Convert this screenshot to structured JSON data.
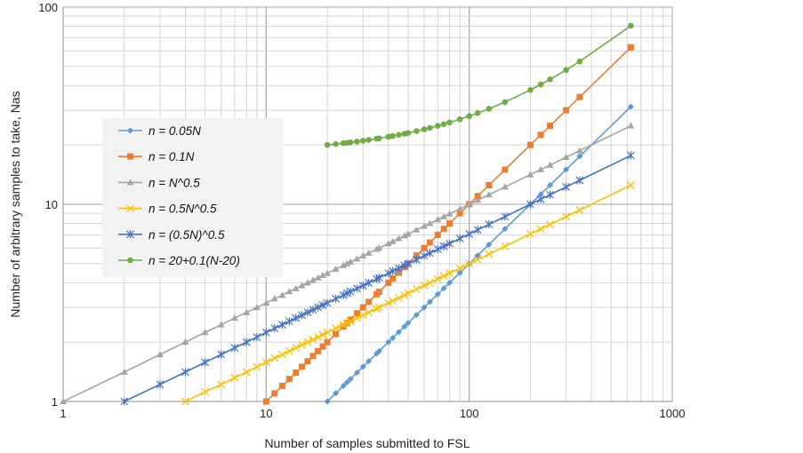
{
  "chart_data": {
    "type": "line",
    "title": "",
    "xlabel": "Number of samples submitted to FSL",
    "ylabel": "Number of arbitrary samples to take, Nas",
    "xscale": "log",
    "yscale": "log",
    "xlim": [
      1,
      1000
    ],
    "ylim": [
      1,
      100
    ],
    "xticks": [
      1,
      10,
      100,
      1000
    ],
    "xtick_labels": [
      "1",
      "10",
      "100",
      "1000"
    ],
    "yticks": [
      1,
      10,
      100
    ],
    "ytick_labels": [
      "1",
      "10",
      "100"
    ],
    "grid": true,
    "legend_position": "left-center",
    "x": [
      1,
      2,
      3,
      4,
      5,
      6,
      7,
      8,
      9,
      10,
      11,
      12,
      13,
      14,
      15,
      16,
      17,
      18,
      19,
      20,
      22,
      24,
      25,
      26,
      28,
      30,
      32,
      35,
      36,
      40,
      42,
      45,
      48,
      50,
      55,
      60,
      64,
      70,
      75,
      80,
      90,
      100,
      110,
      125,
      150,
      200,
      225,
      250,
      300,
      350,
      625
    ],
    "series": [
      {
        "name": "n = 0.05N",
        "color": "#5b9bd5",
        "marker": "diamond",
        "values": [
          null,
          null,
          null,
          null,
          null,
          null,
          null,
          null,
          null,
          null,
          null,
          null,
          null,
          null,
          null,
          null,
          null,
          null,
          null,
          1,
          1.1,
          1.2,
          1.25,
          1.3,
          1.4,
          1.5,
          1.6,
          1.75,
          1.8,
          2,
          2.1,
          2.25,
          2.4,
          2.5,
          2.75,
          3,
          3.2,
          3.5,
          3.75,
          4,
          4.5,
          5,
          5.5,
          6.25,
          7.5,
          10,
          11.25,
          12.5,
          15,
          17.5,
          31.25
        ]
      },
      {
        "name": "n = 0.1N",
        "color": "#ed7d31",
        "marker": "square",
        "values": [
          null,
          null,
          null,
          null,
          null,
          null,
          null,
          null,
          null,
          1,
          1.1,
          1.2,
          1.3,
          1.4,
          1.5,
          1.6,
          1.7,
          1.8,
          1.9,
          2,
          2.2,
          2.4,
          2.5,
          2.6,
          2.8,
          3,
          3.2,
          3.5,
          3.6,
          4,
          4.2,
          4.5,
          4.8,
          5,
          5.5,
          6,
          6.4,
          7,
          7.5,
          8,
          9,
          10,
          11,
          12.5,
          15,
          20,
          22.5,
          25,
          30,
          35,
          62.5
        ]
      },
      {
        "name": "n = N^0.5",
        "color": "#a5a5a5",
        "marker": "triangle",
        "values": [
          1,
          1.41,
          1.73,
          2,
          2.24,
          2.45,
          2.65,
          2.83,
          3,
          3.16,
          3.32,
          3.46,
          3.61,
          3.74,
          3.87,
          4,
          4.12,
          4.24,
          4.36,
          4.47,
          4.69,
          4.9,
          5,
          5.1,
          5.29,
          5.48,
          5.66,
          5.92,
          6,
          6.32,
          6.48,
          6.71,
          6.93,
          7.07,
          7.42,
          7.75,
          8,
          8.37,
          8.66,
          8.94,
          9.49,
          10,
          10.49,
          11.18,
          12.25,
          14.14,
          15,
          15.81,
          17.32,
          18.71,
          25
        ]
      },
      {
        "name": "n = 0.5N^0.5",
        "color": "#ffc000",
        "marker": "x",
        "values": [
          null,
          null,
          null,
          1,
          1.12,
          1.22,
          1.32,
          1.41,
          1.5,
          1.58,
          1.66,
          1.73,
          1.8,
          1.87,
          1.94,
          2,
          2.06,
          2.12,
          2.18,
          2.24,
          2.35,
          2.45,
          2.5,
          2.55,
          2.65,
          2.74,
          2.83,
          2.96,
          3,
          3.16,
          3.24,
          3.35,
          3.46,
          3.54,
          3.71,
          3.87,
          4,
          4.18,
          4.33,
          4.47,
          4.74,
          5,
          5.24,
          5.59,
          6.12,
          7.07,
          7.5,
          7.91,
          8.66,
          9.35,
          12.5
        ]
      },
      {
        "name": "n = (0.5N)^0.5",
        "color": "#4472c4",
        "marker": "asterisk",
        "values": [
          null,
          1,
          1.22,
          1.41,
          1.58,
          1.73,
          1.87,
          2,
          2.12,
          2.24,
          2.35,
          2.45,
          2.55,
          2.65,
          2.74,
          2.83,
          2.92,
          3,
          3.08,
          3.16,
          3.32,
          3.46,
          3.54,
          3.61,
          3.74,
          3.87,
          4,
          4.18,
          4.24,
          4.47,
          4.58,
          4.74,
          4.9,
          5,
          5.24,
          5.48,
          5.66,
          5.92,
          6.12,
          6.32,
          6.71,
          7.07,
          7.42,
          7.91,
          8.66,
          10,
          10.61,
          11.18,
          12.25,
          13.23,
          17.68
        ]
      },
      {
        "name": "n = 20+0.1(N-20)",
        "color": "#70ad47",
        "marker": "circle",
        "values": [
          null,
          null,
          null,
          null,
          null,
          null,
          null,
          null,
          null,
          null,
          null,
          null,
          null,
          null,
          null,
          null,
          null,
          null,
          null,
          20,
          20.2,
          20.4,
          20.5,
          20.6,
          20.8,
          21,
          21.2,
          21.5,
          21.6,
          22,
          22.2,
          22.5,
          22.8,
          23,
          23.5,
          24,
          24.4,
          25,
          25.5,
          26,
          27,
          28,
          29,
          30.5,
          33,
          38,
          40.5,
          43,
          48,
          53,
          80.5
        ]
      }
    ]
  }
}
